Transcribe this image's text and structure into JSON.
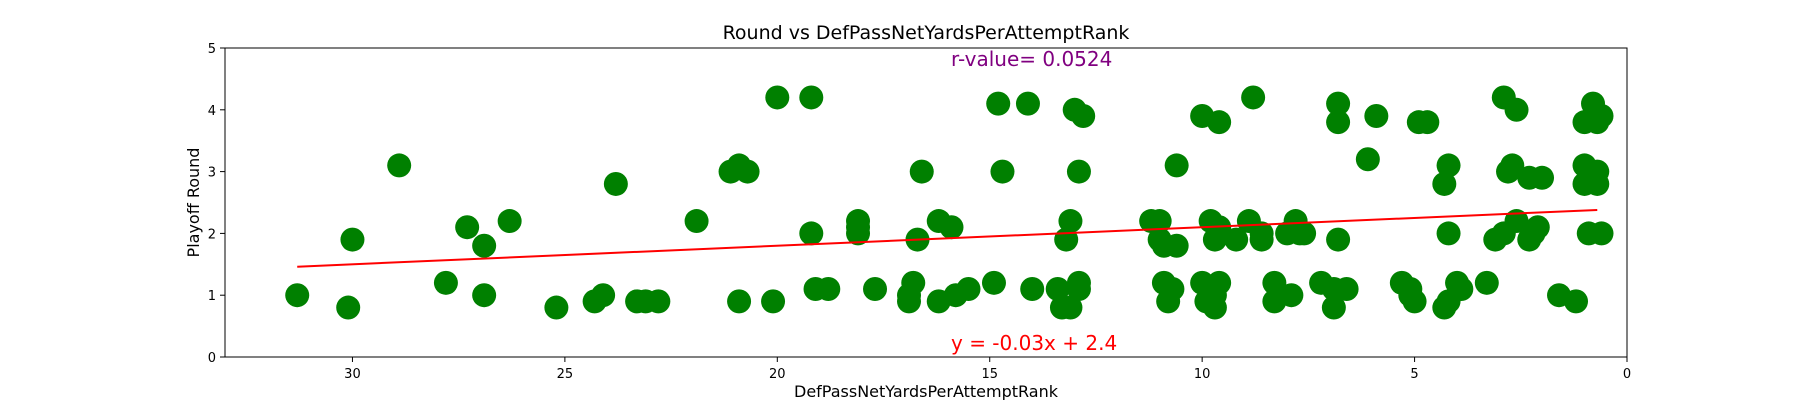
{
  "chart_data": {
    "type": "scatter",
    "title": "Round vs DefPassNetYardsPerAttemptRank",
    "xlabel": "DefPassNetYardsPerAttemptRank",
    "ylabel": "Playoff Round",
    "xlim": [
      33,
      0
    ],
    "ylim": [
      0,
      5
    ],
    "x_inverted": true,
    "xticks": [
      30,
      25,
      20,
      15,
      10,
      5,
      0
    ],
    "yticks": [
      0,
      1,
      2,
      3,
      4,
      5
    ],
    "grid": false,
    "colors": {
      "points": "#008000",
      "regression": "#ff0000",
      "r_value": "#800080"
    },
    "annotations": {
      "r_value": "r-value= 0.0524",
      "equation": "y = -0.03x + 2.4"
    },
    "regression": {
      "slope": -0.03,
      "intercept": 2.4,
      "x_range": [
        31.3,
        0.7
      ]
    },
    "points": [
      {
        "x": 31.3,
        "y": 1.0
      },
      {
        "x": 30.1,
        "y": 0.8
      },
      {
        "x": 30.0,
        "y": 1.9
      },
      {
        "x": 28.9,
        "y": 3.1
      },
      {
        "x": 27.8,
        "y": 1.2
      },
      {
        "x": 27.3,
        "y": 2.1
      },
      {
        "x": 26.9,
        "y": 1.8
      },
      {
        "x": 26.9,
        "y": 1.0
      },
      {
        "x": 26.3,
        "y": 2.2
      },
      {
        "x": 25.2,
        "y": 0.8
      },
      {
        "x": 24.3,
        "y": 0.9
      },
      {
        "x": 24.1,
        "y": 1.0
      },
      {
        "x": 23.8,
        "y": 2.8
      },
      {
        "x": 23.3,
        "y": 0.9
      },
      {
        "x": 23.1,
        "y": 0.9
      },
      {
        "x": 22.8,
        "y": 0.9
      },
      {
        "x": 21.9,
        "y": 2.2
      },
      {
        "x": 21.1,
        "y": 3.0
      },
      {
        "x": 20.9,
        "y": 3.1
      },
      {
        "x": 20.7,
        "y": 3.0
      },
      {
        "x": 20.9,
        "y": 0.9
      },
      {
        "x": 20.1,
        "y": 0.9
      },
      {
        "x": 20.0,
        "y": 4.2
      },
      {
        "x": 19.2,
        "y": 4.2
      },
      {
        "x": 19.2,
        "y": 2.0
      },
      {
        "x": 19.1,
        "y": 1.1
      },
      {
        "x": 18.8,
        "y": 1.1
      },
      {
        "x": 18.1,
        "y": 2.2
      },
      {
        "x": 18.1,
        "y": 2.0
      },
      {
        "x": 18.1,
        "y": 2.1
      },
      {
        "x": 17.7,
        "y": 1.1
      },
      {
        "x": 16.9,
        "y": 0.9
      },
      {
        "x": 16.8,
        "y": 1.2
      },
      {
        "x": 16.9,
        "y": 1.0
      },
      {
        "x": 16.7,
        "y": 1.9
      },
      {
        "x": 16.6,
        "y": 3.0
      },
      {
        "x": 16.2,
        "y": 0.9
      },
      {
        "x": 16.2,
        "y": 2.2
      },
      {
        "x": 15.9,
        "y": 2.1
      },
      {
        "x": 15.8,
        "y": 1.0
      },
      {
        "x": 15.5,
        "y": 1.1
      },
      {
        "x": 14.9,
        "y": 1.2
      },
      {
        "x": 14.8,
        "y": 4.1
      },
      {
        "x": 14.7,
        "y": 3.0
      },
      {
        "x": 14.1,
        "y": 4.1
      },
      {
        "x": 14.0,
        "y": 1.1
      },
      {
        "x": 13.3,
        "y": 0.8
      },
      {
        "x": 13.4,
        "y": 1.1
      },
      {
        "x": 13.1,
        "y": 0.8
      },
      {
        "x": 13.2,
        "y": 1.9
      },
      {
        "x": 13.1,
        "y": 2.2
      },
      {
        "x": 13.0,
        "y": 4.0
      },
      {
        "x": 12.8,
        "y": 3.9
      },
      {
        "x": 12.9,
        "y": 3.0
      },
      {
        "x": 12.9,
        "y": 1.1
      },
      {
        "x": 12.9,
        "y": 1.2
      },
      {
        "x": 11.2,
        "y": 2.2
      },
      {
        "x": 11.0,
        "y": 2.2
      },
      {
        "x": 11.0,
        "y": 1.9
      },
      {
        "x": 10.9,
        "y": 1.8
      },
      {
        "x": 10.9,
        "y": 1.2
      },
      {
        "x": 10.8,
        "y": 0.9
      },
      {
        "x": 10.7,
        "y": 1.1
      },
      {
        "x": 10.6,
        "y": 1.8
      },
      {
        "x": 10.6,
        "y": 3.1
      },
      {
        "x": 10.0,
        "y": 1.2
      },
      {
        "x": 10.0,
        "y": 3.9
      },
      {
        "x": 9.9,
        "y": 0.9
      },
      {
        "x": 9.8,
        "y": 2.2
      },
      {
        "x": 9.6,
        "y": 2.1
      },
      {
        "x": 9.7,
        "y": 1.9
      },
      {
        "x": 9.7,
        "y": 1.0
      },
      {
        "x": 9.7,
        "y": 0.8
      },
      {
        "x": 9.6,
        "y": 1.2
      },
      {
        "x": 9.6,
        "y": 3.8
      },
      {
        "x": 9.2,
        "y": 1.9
      },
      {
        "x": 8.9,
        "y": 2.2
      },
      {
        "x": 8.8,
        "y": 4.2
      },
      {
        "x": 8.6,
        "y": 2.0
      },
      {
        "x": 8.6,
        "y": 1.9
      },
      {
        "x": 8.3,
        "y": 1.2
      },
      {
        "x": 8.3,
        "y": 0.9
      },
      {
        "x": 8.0,
        "y": 2.0
      },
      {
        "x": 7.9,
        "y": 1.0
      },
      {
        "x": 7.8,
        "y": 2.2
      },
      {
        "x": 7.7,
        "y": 2.0
      },
      {
        "x": 7.6,
        "y": 2.0
      },
      {
        "x": 7.2,
        "y": 1.2
      },
      {
        "x": 6.9,
        "y": 1.1
      },
      {
        "x": 6.9,
        "y": 0.8
      },
      {
        "x": 6.8,
        "y": 1.9
      },
      {
        "x": 6.8,
        "y": 3.8
      },
      {
        "x": 6.8,
        "y": 4.1
      },
      {
        "x": 6.6,
        "y": 1.1
      },
      {
        "x": 5.9,
        "y": 3.9
      },
      {
        "x": 6.1,
        "y": 3.2
      },
      {
        "x": 5.3,
        "y": 1.2
      },
      {
        "x": 5.1,
        "y": 1.1
      },
      {
        "x": 5.1,
        "y": 1.0
      },
      {
        "x": 5.0,
        "y": 0.9
      },
      {
        "x": 4.9,
        "y": 3.8
      },
      {
        "x": 4.7,
        "y": 3.8
      },
      {
        "x": 4.3,
        "y": 2.8
      },
      {
        "x": 4.2,
        "y": 3.1
      },
      {
        "x": 4.2,
        "y": 2.0
      },
      {
        "x": 4.3,
        "y": 0.8
      },
      {
        "x": 4.2,
        "y": 0.9
      },
      {
        "x": 4.0,
        "y": 1.2
      },
      {
        "x": 3.9,
        "y": 1.1
      },
      {
        "x": 3.3,
        "y": 1.2
      },
      {
        "x": 3.1,
        "y": 1.9
      },
      {
        "x": 2.9,
        "y": 2.0
      },
      {
        "x": 2.8,
        "y": 3.0
      },
      {
        "x": 2.7,
        "y": 3.1
      },
      {
        "x": 2.6,
        "y": 2.2
      },
      {
        "x": 2.9,
        "y": 4.2
      },
      {
        "x": 2.6,
        "y": 4.0
      },
      {
        "x": 2.3,
        "y": 1.9
      },
      {
        "x": 2.2,
        "y": 2.0
      },
      {
        "x": 2.1,
        "y": 2.1
      },
      {
        "x": 2.3,
        "y": 2.9
      },
      {
        "x": 2.0,
        "y": 2.9
      },
      {
        "x": 1.6,
        "y": 1.0
      },
      {
        "x": 1.2,
        "y": 0.9
      },
      {
        "x": 1.0,
        "y": 3.8
      },
      {
        "x": 1.0,
        "y": 3.1
      },
      {
        "x": 1.0,
        "y": 2.8
      },
      {
        "x": 0.9,
        "y": 2.0
      },
      {
        "x": 0.8,
        "y": 4.1
      },
      {
        "x": 0.7,
        "y": 3.8
      },
      {
        "x": 0.6,
        "y": 3.9
      },
      {
        "x": 0.7,
        "y": 3.0
      },
      {
        "x": 0.7,
        "y": 2.8
      },
      {
        "x": 0.6,
        "y": 2.0
      }
    ]
  }
}
